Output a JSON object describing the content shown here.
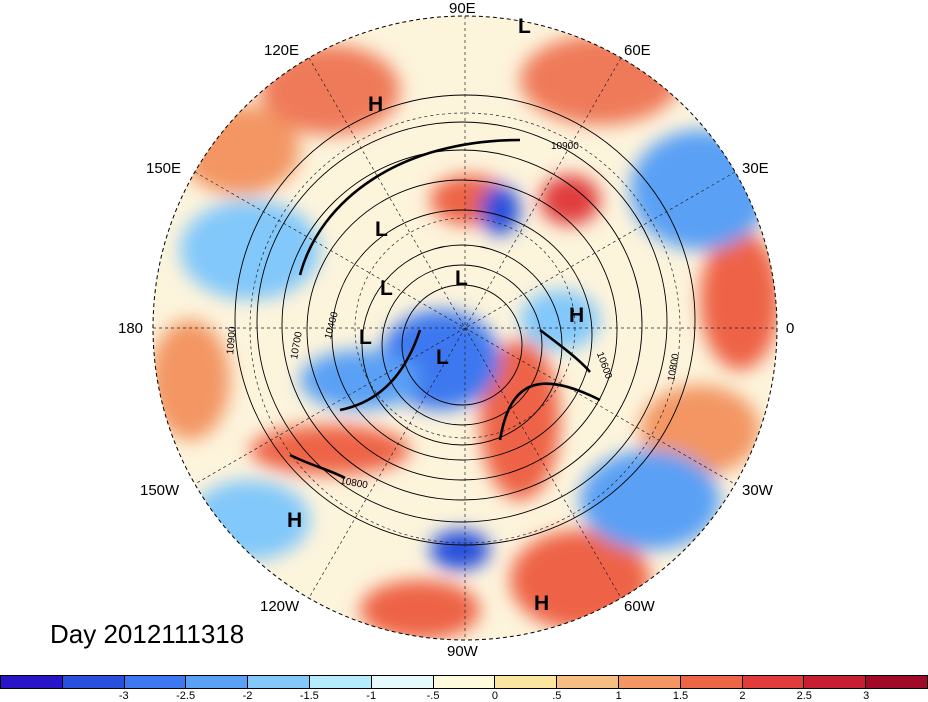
{
  "date_label": "Day 2012111318",
  "longitude_labels": [
    {
      "text": "90E",
      "key": "top"
    },
    {
      "text": "60E",
      "key": "upper-right"
    },
    {
      "text": "30E",
      "key": "right-upper"
    },
    {
      "text": "0",
      "key": "right"
    },
    {
      "text": "30W",
      "key": "right-lower"
    },
    {
      "text": "60W",
      "key": "lower-right"
    },
    {
      "text": "90W",
      "key": "bottom"
    },
    {
      "text": "120W",
      "key": "lower-left"
    },
    {
      "text": "150W",
      "key": "left-lower"
    },
    {
      "text": "180",
      "key": "left"
    },
    {
      "text": "150E",
      "key": "left-upper"
    },
    {
      "text": "120E",
      "key": "upper-left"
    }
  ],
  "contour_labels": [
    "10900",
    "10700",
    "10400",
    "10600",
    "10900",
    "10800",
    "10800"
  ],
  "pressure_markers": [
    "L",
    "H",
    "L",
    "L",
    "L",
    "L",
    "H",
    "L",
    "L",
    "H",
    "H"
  ],
  "colorbar": {
    "colors": [
      "#2a14c8",
      "#2850dc",
      "#3c78f0",
      "#5aa0f5",
      "#82c8fa",
      "#b4ecfc",
      "#e6fafc",
      "#fefadc",
      "#fbe6a0",
      "#f7be82",
      "#f39664",
      "#ee6446",
      "#e03c3c",
      "#c81e32",
      "#a00a28"
    ],
    "tick_labels": [
      "-3",
      "-2.5",
      "-2",
      "-1.5",
      "-1",
      "-.5",
      "0",
      ".5",
      "1",
      "1.5",
      "2",
      "2.5",
      "3"
    ]
  }
}
